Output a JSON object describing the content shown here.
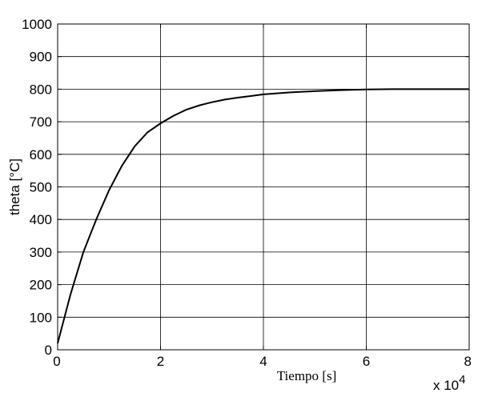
{
  "chart_data": {
    "type": "line",
    "xlabel": "Tiempo [s]",
    "ylabel": "theta [°C]",
    "x_multiplier": {
      "base": "x 10",
      "exponent": "4"
    },
    "xlim": [
      0,
      8
    ],
    "ylim": [
      0,
      1000
    ],
    "xticks": [
      0,
      2,
      4,
      6,
      8
    ],
    "xtick_labels": [
      "0",
      "2",
      "4",
      "6",
      "8"
    ],
    "yticks": [
      0,
      100,
      200,
      300,
      400,
      500,
      600,
      700,
      800,
      900,
      1000
    ],
    "ytick_labels": [
      "0",
      "100",
      "200",
      "300",
      "400",
      "500",
      "600",
      "700",
      "800",
      "900",
      "1000"
    ],
    "grid": true,
    "series": [
      {
        "x": [
          0,
          0.25,
          0.5,
          0.75,
          1,
          1.25,
          1.5,
          1.75,
          2,
          2.25,
          2.5,
          2.75,
          3,
          3.25,
          3.5,
          3.75,
          4,
          4.5,
          5,
          5.5,
          6,
          6.5,
          7,
          7.5,
          8
        ],
        "y": [
          20,
          170,
          300,
          400,
          490,
          565,
          625,
          668,
          695,
          718,
          737,
          750,
          760,
          768,
          774,
          779,
          784,
          790,
          794,
          797,
          799,
          800,
          800,
          800,
          800
        ]
      }
    ]
  }
}
